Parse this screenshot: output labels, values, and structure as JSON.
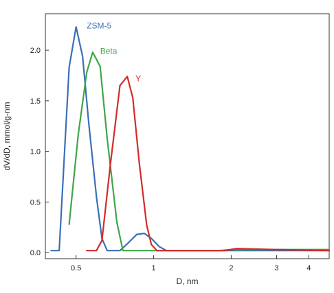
{
  "chart_data": {
    "type": "line",
    "xlabel": "D, nm",
    "ylabel": "dV/dD, mmol/g-nm",
    "x_scale": "log",
    "xlim": [
      0.38,
      4.8
    ],
    "ylim": [
      -0.06,
      2.36
    ],
    "x_ticks": [
      {
        "value": 0.5,
        "label": "0.5"
      },
      {
        "value": 1,
        "label": "1"
      },
      {
        "value": 2,
        "label": "2"
      },
      {
        "value": 3,
        "label": "3"
      },
      {
        "value": 4,
        "label": "4"
      }
    ],
    "y_ticks": [
      {
        "value": 0.0,
        "label": "0.0"
      },
      {
        "value": 0.5,
        "label": "0.5"
      },
      {
        "value": 1.0,
        "label": "1.0"
      },
      {
        "value": 1.5,
        "label": "1.5"
      },
      {
        "value": 2.0,
        "label": "2.0"
      }
    ],
    "grid": false,
    "series": [
      {
        "name": "ZSM-5",
        "color": "#3a6fb5",
        "points": [
          [
            0.4,
            0.02
          ],
          [
            0.43,
            0.02
          ],
          [
            0.47,
            1.83
          ],
          [
            0.5,
            2.23
          ],
          [
            0.53,
            1.94
          ],
          [
            0.56,
            1.28
          ],
          [
            0.6,
            0.55
          ],
          [
            0.63,
            0.14
          ],
          [
            0.66,
            0.02
          ],
          [
            0.74,
            0.02
          ],
          [
            0.8,
            0.1
          ],
          [
            0.86,
            0.18
          ],
          [
            0.92,
            0.19
          ],
          [
            0.98,
            0.14
          ],
          [
            1.05,
            0.06
          ],
          [
            1.12,
            0.02
          ],
          [
            2.0,
            0.02
          ],
          [
            4.8,
            0.02
          ]
        ]
      },
      {
        "name": "Beta",
        "color": "#3ea646",
        "points": [
          [
            0.47,
            0.28
          ],
          [
            0.51,
            1.17
          ],
          [
            0.55,
            1.78
          ],
          [
            0.58,
            1.98
          ],
          [
            0.62,
            1.84
          ],
          [
            0.66,
            1.13
          ],
          [
            0.72,
            0.3
          ],
          [
            0.76,
            0.02
          ],
          [
            1.0,
            0.02
          ],
          [
            1.8,
            0.02
          ],
          [
            2.0,
            0.03
          ],
          [
            4.8,
            0.03
          ]
        ]
      },
      {
        "name": "Y",
        "color": "#d42a2a",
        "points": [
          [
            0.55,
            0.02
          ],
          [
            0.6,
            0.02
          ],
          [
            0.63,
            0.12
          ],
          [
            0.68,
            0.88
          ],
          [
            0.74,
            1.65
          ],
          [
            0.79,
            1.74
          ],
          [
            0.83,
            1.53
          ],
          [
            0.88,
            0.88
          ],
          [
            0.94,
            0.27
          ],
          [
            0.98,
            0.08
          ],
          [
            1.03,
            0.02
          ],
          [
            1.5,
            0.02
          ],
          [
            1.88,
            0.02
          ],
          [
            2.1,
            0.04
          ],
          [
            3.0,
            0.03
          ],
          [
            4.8,
            0.02
          ]
        ]
      }
    ],
    "annotations": [
      {
        "text": "ZSM-5",
        "series": "ZSM-5",
        "x": 0.55,
        "y": 2.24
      },
      {
        "text": "Beta",
        "series": "Beta",
        "x": 0.62,
        "y": 1.99
      },
      {
        "text": "Y",
        "series": "Y",
        "x": 0.85,
        "y": 1.72
      }
    ]
  }
}
